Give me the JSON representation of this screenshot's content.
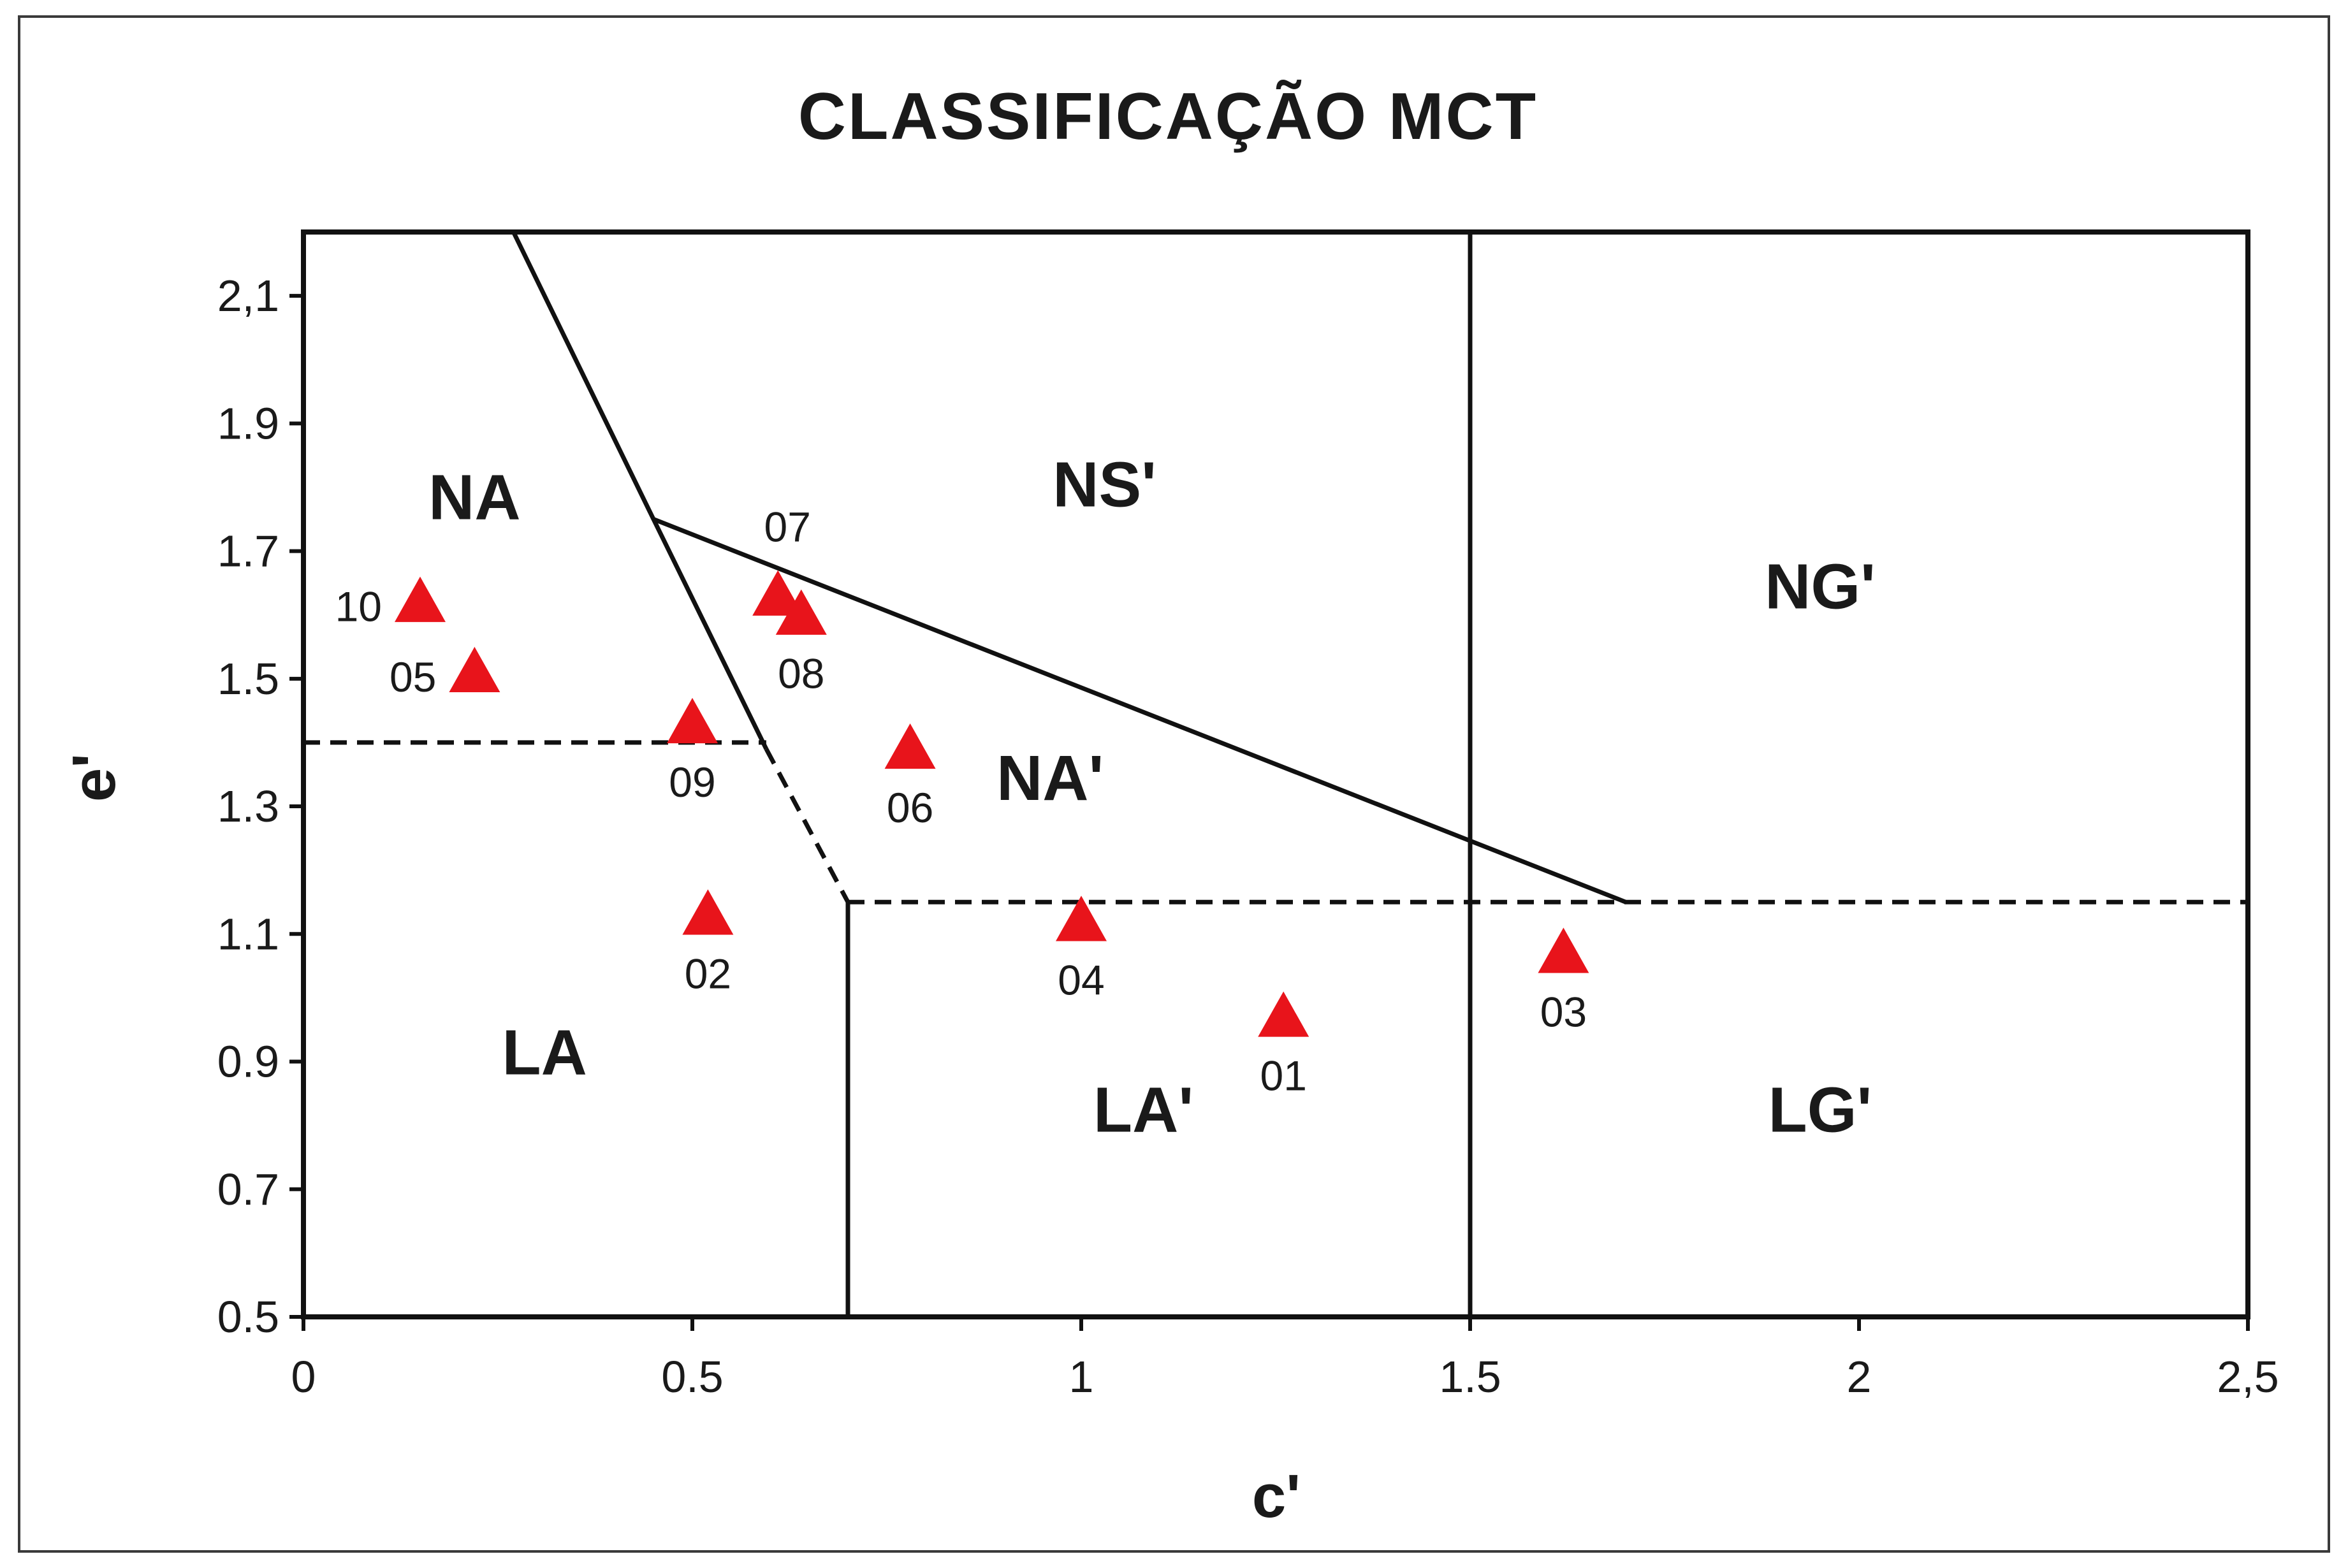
{
  "colors": {
    "marker": "#e8141b",
    "line": "#111111",
    "frame": "#3a3a3a"
  },
  "chart_data": {
    "type": "scatter",
    "title": "CLASSIFICAÇÃO MCT",
    "xlabel": "c'",
    "ylabel": "e'",
    "xlim": [
      0,
      2.5
    ],
    "ylim": [
      0.5,
      2.2
    ],
    "x_ticks": [
      {
        "value": 0,
        "label": "0"
      },
      {
        "value": 0.5,
        "label": "0.5"
      },
      {
        "value": 1,
        "label": "1"
      },
      {
        "value": 1.5,
        "label": "1.5"
      },
      {
        "value": 2,
        "label": "2"
      },
      {
        "value": 2.5,
        "label": "2,5"
      }
    ],
    "y_ticks": [
      {
        "value": 0.5,
        "label": "0.5"
      },
      {
        "value": 0.7,
        "label": "0.7"
      },
      {
        "value": 0.9,
        "label": "0.9"
      },
      {
        "value": 1.1,
        "label": "1.1"
      },
      {
        "value": 1.3,
        "label": "1.3"
      },
      {
        "value": 1.5,
        "label": "1.5"
      },
      {
        "value": 1.7,
        "label": "1.7"
      },
      {
        "value": 1.9,
        "label": "1.9"
      },
      {
        "value": 2.1,
        "label": "2,1"
      }
    ],
    "grid": false,
    "legend": "none",
    "marker": "triangle",
    "points": [
      {
        "label": "01",
        "x": 1.26,
        "y": 0.97
      },
      {
        "label": "02",
        "x": 0.52,
        "y": 1.13
      },
      {
        "label": "03",
        "x": 1.62,
        "y": 1.07
      },
      {
        "label": "04",
        "x": 1.0,
        "y": 1.12
      },
      {
        "label": "05",
        "x": 0.22,
        "y": 1.51
      },
      {
        "label": "06",
        "x": 0.78,
        "y": 1.39
      },
      {
        "label": "07",
        "x": 0.61,
        "y": 1.63
      },
      {
        "label": "08",
        "x": 0.64,
        "y": 1.6
      },
      {
        "label": "09",
        "x": 0.5,
        "y": 1.43
      },
      {
        "label": "10",
        "x": 0.15,
        "y": 1.62
      }
    ],
    "boundaries": [
      {
        "style": "solid",
        "points": [
          [
            0.27,
            2.2
          ],
          [
            0.45,
            1.75
          ],
          [
            0.595,
            1.39
          ]
        ]
      },
      {
        "style": "dashed",
        "points": [
          [
            0.595,
            1.39
          ],
          [
            0.7,
            1.15
          ]
        ]
      },
      {
        "style": "solid",
        "points": [
          [
            0.45,
            1.75
          ],
          [
            1.7,
            1.15
          ]
        ]
      },
      {
        "style": "dashed",
        "points": [
          [
            0,
            1.4
          ],
          [
            0.595,
            1.4
          ]
        ]
      },
      {
        "style": "dashed",
        "points": [
          [
            0.7,
            1.15
          ],
          [
            2.5,
            1.15
          ]
        ]
      },
      {
        "style": "solid",
        "points": [
          [
            0.7,
            0.5
          ],
          [
            0.7,
            1.15
          ]
        ]
      },
      {
        "style": "solid",
        "points": [
          [
            1.5,
            0.5
          ],
          [
            1.5,
            2.2
          ]
        ]
      }
    ],
    "regions": [
      {
        "label": "NA",
        "x": 0.22,
        "y": 1.75
      },
      {
        "label": "NS'",
        "x": 1.03,
        "y": 1.77
      },
      {
        "label": "NG'",
        "x": 1.95,
        "y": 1.61
      },
      {
        "label": "NA'",
        "x": 0.96,
        "y": 1.31
      },
      {
        "label": "LA",
        "x": 0.31,
        "y": 0.88
      },
      {
        "label": "LA'",
        "x": 1.08,
        "y": 0.79
      },
      {
        "label": "LG'",
        "x": 1.95,
        "y": 0.79
      }
    ]
  }
}
